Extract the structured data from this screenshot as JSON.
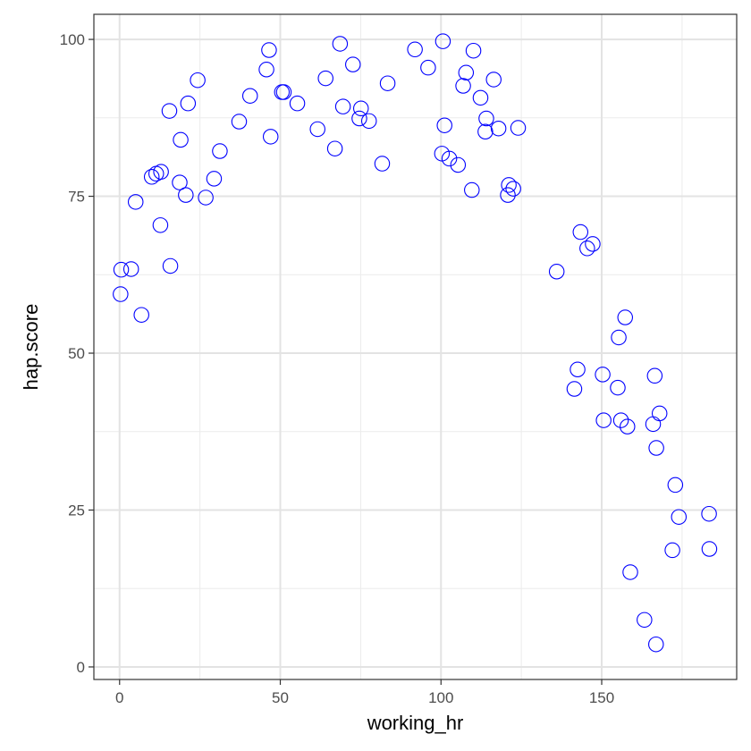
{
  "chart_data": {
    "type": "scatter",
    "title": "",
    "xlabel": "working_hr",
    "ylabel": "hap.score",
    "xlim": [
      -8,
      192
    ],
    "ylim": [
      -2,
      104
    ],
    "x_ticks": [
      0,
      50,
      100,
      150
    ],
    "x_tick_labels": [
      "0",
      "50",
      "100",
      "150"
    ],
    "y_ticks": [
      0,
      25,
      50,
      75,
      100
    ],
    "y_tick_labels": [
      "0",
      "25",
      "50",
      "75",
      "100"
    ],
    "grid": true,
    "legend": "none",
    "marker": "hollow-circle",
    "marker_color": "#0000ff",
    "points": [
      {
        "x": 0.5,
        "y": 63.3
      },
      {
        "x": 0.3,
        "y": 59.4
      },
      {
        "x": 3.6,
        "y": 63.4
      },
      {
        "x": 5.0,
        "y": 74.1
      },
      {
        "x": 6.8,
        "y": 56.1
      },
      {
        "x": 10.0,
        "y": 78.1
      },
      {
        "x": 11.4,
        "y": 78.6
      },
      {
        "x": 12.7,
        "y": 70.4
      },
      {
        "x": 12.9,
        "y": 78.9
      },
      {
        "x": 15.5,
        "y": 88.6
      },
      {
        "x": 15.8,
        "y": 63.9
      },
      {
        "x": 18.7,
        "y": 77.2
      },
      {
        "x": 19.0,
        "y": 84.0
      },
      {
        "x": 20.6,
        "y": 75.2
      },
      {
        "x": 21.3,
        "y": 89.8
      },
      {
        "x": 24.3,
        "y": 93.5
      },
      {
        "x": 26.8,
        "y": 74.8
      },
      {
        "x": 29.4,
        "y": 77.8
      },
      {
        "x": 31.2,
        "y": 82.2
      },
      {
        "x": 37.2,
        "y": 86.9
      },
      {
        "x": 40.6,
        "y": 91.0
      },
      {
        "x": 45.7,
        "y": 95.2
      },
      {
        "x": 46.5,
        "y": 98.3
      },
      {
        "x": 47.0,
        "y": 84.5
      },
      {
        "x": 50.5,
        "y": 91.6
      },
      {
        "x": 51.1,
        "y": 91.6
      },
      {
        "x": 55.3,
        "y": 89.8
      },
      {
        "x": 61.6,
        "y": 85.7
      },
      {
        "x": 64.1,
        "y": 93.8
      },
      {
        "x": 67.0,
        "y": 82.6
      },
      {
        "x": 68.6,
        "y": 99.3
      },
      {
        "x": 69.5,
        "y": 89.3
      },
      {
        "x": 72.6,
        "y": 96.0
      },
      {
        "x": 74.6,
        "y": 87.4
      },
      {
        "x": 75.1,
        "y": 89.0
      },
      {
        "x": 77.6,
        "y": 87.0
      },
      {
        "x": 81.7,
        "y": 80.2
      },
      {
        "x": 83.4,
        "y": 93.0
      },
      {
        "x": 91.9,
        "y": 98.4
      },
      {
        "x": 96.0,
        "y": 95.5
      },
      {
        "x": 100.3,
        "y": 81.8
      },
      {
        "x": 100.6,
        "y": 99.7
      },
      {
        "x": 101.1,
        "y": 86.3
      },
      {
        "x": 102.6,
        "y": 81.0
      },
      {
        "x": 105.3,
        "y": 80.0
      },
      {
        "x": 106.9,
        "y": 92.6
      },
      {
        "x": 107.8,
        "y": 94.7
      },
      {
        "x": 109.6,
        "y": 76.0
      },
      {
        "x": 110.1,
        "y": 98.2
      },
      {
        "x": 112.3,
        "y": 90.7
      },
      {
        "x": 113.8,
        "y": 85.3
      },
      {
        "x": 114.1,
        "y": 87.4
      },
      {
        "x": 116.4,
        "y": 93.6
      },
      {
        "x": 117.9,
        "y": 85.8
      },
      {
        "x": 120.8,
        "y": 75.2
      },
      {
        "x": 121.1,
        "y": 76.8
      },
      {
        "x": 122.5,
        "y": 76.2
      },
      {
        "x": 124.0,
        "y": 85.9
      },
      {
        "x": 136.0,
        "y": 63.0
      },
      {
        "x": 141.5,
        "y": 44.3
      },
      {
        "x": 142.5,
        "y": 47.4
      },
      {
        "x": 143.4,
        "y": 69.3
      },
      {
        "x": 145.5,
        "y": 66.7
      },
      {
        "x": 147.2,
        "y": 67.4
      },
      {
        "x": 150.3,
        "y": 46.6
      },
      {
        "x": 150.6,
        "y": 39.3
      },
      {
        "x": 155.0,
        "y": 44.5
      },
      {
        "x": 155.3,
        "y": 52.5
      },
      {
        "x": 156.0,
        "y": 39.3
      },
      {
        "x": 157.3,
        "y": 55.7
      },
      {
        "x": 158.0,
        "y": 38.3
      },
      {
        "x": 158.9,
        "y": 15.1
      },
      {
        "x": 163.3,
        "y": 7.5
      },
      {
        "x": 166.0,
        "y": 38.7
      },
      {
        "x": 166.5,
        "y": 46.4
      },
      {
        "x": 166.9,
        "y": 3.6
      },
      {
        "x": 167.0,
        "y": 34.9
      },
      {
        "x": 168.0,
        "y": 40.4
      },
      {
        "x": 172.0,
        "y": 18.6
      },
      {
        "x": 172.9,
        "y": 29.0
      },
      {
        "x": 174.0,
        "y": 23.9
      },
      {
        "x": 183.4,
        "y": 24.4
      },
      {
        "x": 183.5,
        "y": 18.8
      }
    ]
  }
}
